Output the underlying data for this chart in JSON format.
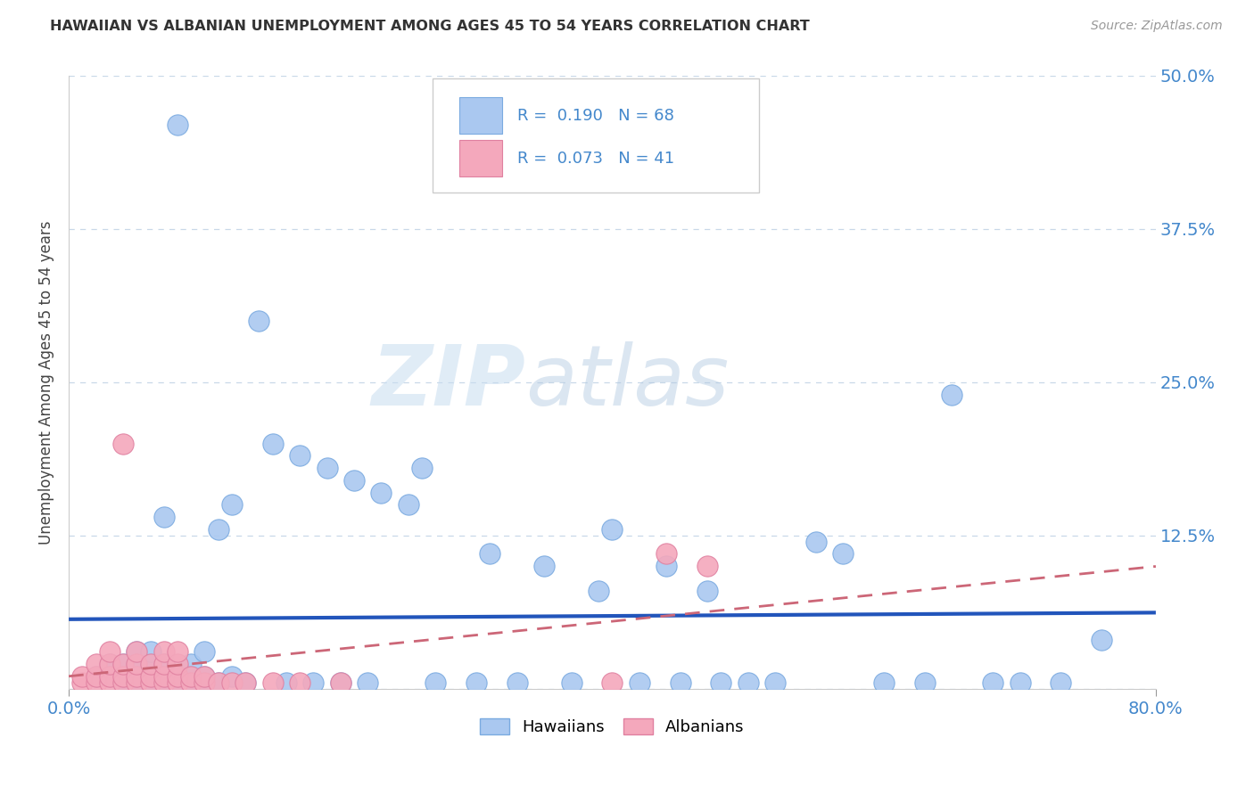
{
  "title": "HAWAIIAN VS ALBANIAN UNEMPLOYMENT AMONG AGES 45 TO 54 YEARS CORRELATION CHART",
  "source": "Source: ZipAtlas.com",
  "ylabel": "Unemployment Among Ages 45 to 54 years",
  "xlim": [
    0.0,
    0.8
  ],
  "ylim": [
    0.0,
    0.5
  ],
  "xticks": [
    0.0,
    0.8
  ],
  "xticklabels": [
    "0.0%",
    "80.0%"
  ],
  "yticks": [
    0.0,
    0.125,
    0.25,
    0.375,
    0.5
  ],
  "yticklabels": [
    "",
    "12.5%",
    "25.0%",
    "37.5%",
    "50.0%"
  ],
  "hawaiian_R": 0.19,
  "hawaiian_N": 68,
  "albanian_R": 0.073,
  "albanian_N": 41,
  "hawaiian_color": "#aac8f0",
  "hawaiian_edge": "#7aaae0",
  "albanian_color": "#f4a8bc",
  "albanian_edge": "#e080a0",
  "hawaiian_line_color": "#2255bb",
  "albanian_line_color": "#cc6677",
  "background_color": "#ffffff",
  "watermark_zip": "ZIP",
  "watermark_atlas": "atlas",
  "grid_color": "#c8d8e8",
  "tick_color": "#4488cc",
  "hawaiian_x": [
    0.02,
    0.03,
    0.03,
    0.04,
    0.04,
    0.04,
    0.05,
    0.05,
    0.05,
    0.05,
    0.06,
    0.06,
    0.06,
    0.06,
    0.07,
    0.07,
    0.07,
    0.07,
    0.08,
    0.08,
    0.08,
    0.09,
    0.09,
    0.09,
    0.1,
    0.1,
    0.1,
    0.11,
    0.11,
    0.12,
    0.12,
    0.13,
    0.14,
    0.15,
    0.16,
    0.17,
    0.18,
    0.19,
    0.2,
    0.21,
    0.22,
    0.23,
    0.25,
    0.26,
    0.27,
    0.3,
    0.31,
    0.33,
    0.35,
    0.37,
    0.39,
    0.4,
    0.42,
    0.44,
    0.45,
    0.47,
    0.48,
    0.5,
    0.52,
    0.55,
    0.57,
    0.6,
    0.63,
    0.65,
    0.68,
    0.7,
    0.73,
    0.76
  ],
  "hawaiian_y": [
    0.01,
    0.01,
    0.02,
    0.005,
    0.01,
    0.02,
    0.005,
    0.01,
    0.02,
    0.03,
    0.005,
    0.01,
    0.02,
    0.03,
    0.005,
    0.01,
    0.02,
    0.14,
    0.005,
    0.01,
    0.46,
    0.005,
    0.01,
    0.02,
    0.005,
    0.01,
    0.03,
    0.005,
    0.13,
    0.01,
    0.15,
    0.005,
    0.3,
    0.2,
    0.005,
    0.19,
    0.005,
    0.18,
    0.005,
    0.17,
    0.005,
    0.16,
    0.15,
    0.18,
    0.005,
    0.005,
    0.11,
    0.005,
    0.1,
    0.005,
    0.08,
    0.13,
    0.005,
    0.1,
    0.005,
    0.08,
    0.005,
    0.005,
    0.005,
    0.12,
    0.11,
    0.005,
    0.005,
    0.24,
    0.005,
    0.005,
    0.005,
    0.04
  ],
  "albanian_x": [
    0.01,
    0.01,
    0.02,
    0.02,
    0.02,
    0.03,
    0.03,
    0.03,
    0.03,
    0.04,
    0.04,
    0.04,
    0.04,
    0.05,
    0.05,
    0.05,
    0.05,
    0.06,
    0.06,
    0.06,
    0.07,
    0.07,
    0.07,
    0.07,
    0.08,
    0.08,
    0.08,
    0.08,
    0.09,
    0.09,
    0.1,
    0.1,
    0.11,
    0.12,
    0.13,
    0.15,
    0.17,
    0.2,
    0.4,
    0.44,
    0.47
  ],
  "albanian_y": [
    0.005,
    0.01,
    0.005,
    0.01,
    0.02,
    0.005,
    0.01,
    0.02,
    0.03,
    0.005,
    0.01,
    0.02,
    0.2,
    0.005,
    0.01,
    0.02,
    0.03,
    0.005,
    0.01,
    0.02,
    0.005,
    0.01,
    0.02,
    0.03,
    0.005,
    0.01,
    0.02,
    0.03,
    0.005,
    0.01,
    0.005,
    0.01,
    0.005,
    0.005,
    0.005,
    0.005,
    0.005,
    0.005,
    0.005,
    0.11,
    0.1
  ]
}
